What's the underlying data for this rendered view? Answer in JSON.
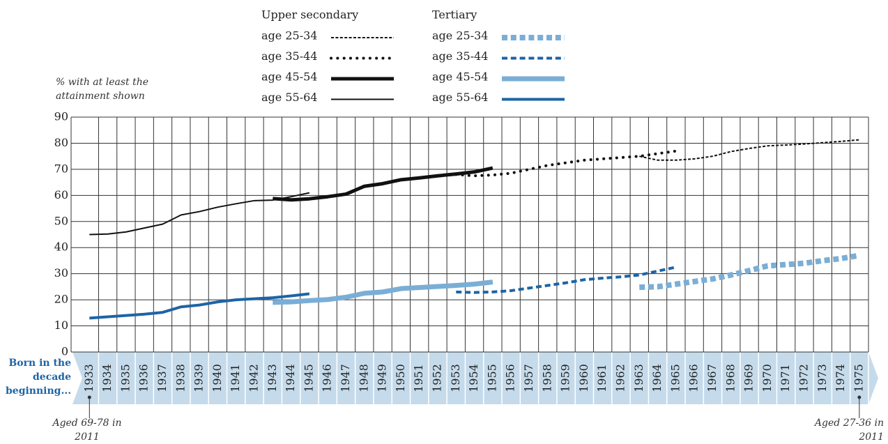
{
  "chart_data": {
    "type": "line",
    "legend_titles": [
      "Upper secondary",
      "Tertiary"
    ],
    "ylabel": "% with at least the attainment shown",
    "xlabel": "Born in the decade beginning...",
    "annotations": [
      "Aged 69-78 in 2011",
      "Aged 27-36 in 2011"
    ],
    "x": [
      1933,
      1934,
      1935,
      1936,
      1937,
      1938,
      1939,
      1940,
      1941,
      1942,
      1943,
      1944,
      1945,
      1946,
      1947,
      1948,
      1949,
      1950,
      1951,
      1952,
      1953,
      1954,
      1955,
      1956,
      1957,
      1958,
      1959,
      1960,
      1961,
      1962,
      1963,
      1964,
      1965,
      1966,
      1967,
      1968,
      1969,
      1970,
      1971,
      1972,
      1973,
      1974,
      1975
    ],
    "xlim": [
      1932,
      1975.5
    ],
    "ylim": [
      0,
      90
    ],
    "yticks": [
      0,
      10,
      20,
      30,
      40,
      50,
      60,
      70,
      80,
      90
    ],
    "grid": true,
    "series": [
      {
        "name": "age 25-34",
        "color": "#111111",
        "linestyle": "dashed",
        "linewidth": 2,
        "values": [
          null,
          null,
          null,
          null,
          null,
          null,
          null,
          null,
          null,
          null,
          null,
          null,
          null,
          null,
          null,
          null,
          null,
          null,
          null,
          null,
          null,
          null,
          null,
          null,
          null,
          null,
          null,
          null,
          null,
          null,
          75,
          73.5,
          73.5,
          74,
          75,
          76.8,
          78,
          79,
          79.3,
          79.7,
          80.2,
          80.7,
          81.3
        ]
      },
      {
        "name": "age 35-44",
        "color": "#111111",
        "linestyle": "dotted",
        "linewidth": 4,
        "values": [
          null,
          null,
          null,
          null,
          null,
          null,
          null,
          null,
          null,
          null,
          null,
          null,
          null,
          null,
          null,
          null,
          null,
          null,
          null,
          null,
          68,
          67.5,
          67.8,
          68.5,
          70,
          71.5,
          72.5,
          73.5,
          74,
          74.5,
          75,
          76,
          77,
          null,
          null,
          null,
          null,
          null,
          null,
          null,
          null,
          null,
          null
        ]
      },
      {
        "name": "age 45-54",
        "color": "#111111",
        "linestyle": "solid",
        "linewidth": 5,
        "values": [
          null,
          null,
          null,
          null,
          null,
          null,
          null,
          null,
          null,
          null,
          58.8,
          58.3,
          58.7,
          59.5,
          60.5,
          63.5,
          64.5,
          66,
          66.7,
          67.5,
          68.2,
          69,
          70.5,
          null,
          null,
          null,
          null,
          null,
          null,
          null,
          null,
          null,
          null,
          null,
          null,
          null,
          null,
          null,
          null,
          null,
          null,
          null,
          null
        ]
      },
      {
        "name": "age 55-64",
        "color": "#111111",
        "linestyle": "solid",
        "linewidth": 2,
        "values": [
          45,
          45.2,
          46,
          47.5,
          49,
          52.5,
          53.8,
          55.5,
          56.8,
          58,
          58.2,
          59.5,
          61,
          null,
          null,
          null,
          null,
          null,
          null,
          null,
          null,
          null,
          null,
          null,
          null,
          null,
          null,
          null,
          null,
          null,
          null,
          null,
          null,
          null,
          null,
          null,
          null,
          null,
          null,
          null,
          null,
          null,
          null
        ]
      },
      {
        "name": "age 25-34",
        "color": "#7aaed6",
        "linestyle": "dashed",
        "linewidth": 8,
        "values": [
          null,
          null,
          null,
          null,
          null,
          null,
          null,
          null,
          null,
          null,
          null,
          null,
          null,
          null,
          null,
          null,
          null,
          null,
          null,
          null,
          null,
          null,
          null,
          null,
          null,
          null,
          null,
          null,
          null,
          null,
          24.8,
          25,
          26,
          27,
          28,
          29.5,
          31.2,
          33,
          33.5,
          34,
          35,
          35.8,
          37
        ]
      },
      {
        "name": "age 35-44",
        "color": "#1c64a6",
        "linestyle": "dashed",
        "linewidth": 4,
        "values": [
          null,
          null,
          null,
          null,
          null,
          null,
          null,
          null,
          null,
          null,
          null,
          null,
          null,
          null,
          null,
          null,
          null,
          null,
          null,
          null,
          23,
          22.8,
          23,
          23.5,
          24.5,
          25.5,
          26.5,
          27.7,
          28.3,
          28.8,
          29.5,
          31,
          32.5,
          null,
          null,
          null,
          null,
          null,
          null,
          null,
          null,
          null,
          null
        ]
      },
      {
        "name": "age 45-54",
        "color": "#7aaed6",
        "linestyle": "solid",
        "linewidth": 7,
        "values": [
          null,
          null,
          null,
          null,
          null,
          null,
          null,
          null,
          null,
          null,
          19,
          19.2,
          19.7,
          20.1,
          21,
          22.5,
          23,
          24.3,
          24.7,
          25.1,
          25.5,
          26,
          26.8,
          null,
          null,
          null,
          null,
          null,
          null,
          null,
          null,
          null,
          null,
          null,
          null,
          null,
          null,
          null,
          null,
          null,
          null,
          null,
          null
        ]
      },
      {
        "name": "age 55-64",
        "color": "#1c64a6",
        "linestyle": "solid",
        "linewidth": 4,
        "values": [
          13,
          13.5,
          14,
          14.5,
          15.2,
          17.3,
          18,
          19.2,
          20,
          20.4,
          20.8,
          21.5,
          22.3,
          null,
          null,
          null,
          null,
          null,
          null,
          null,
          null,
          null,
          null,
          null,
          null,
          null,
          null,
          null,
          null,
          null,
          null,
          null,
          null,
          null,
          null,
          null,
          null,
          null,
          null,
          null,
          null,
          null,
          null
        ]
      }
    ]
  }
}
